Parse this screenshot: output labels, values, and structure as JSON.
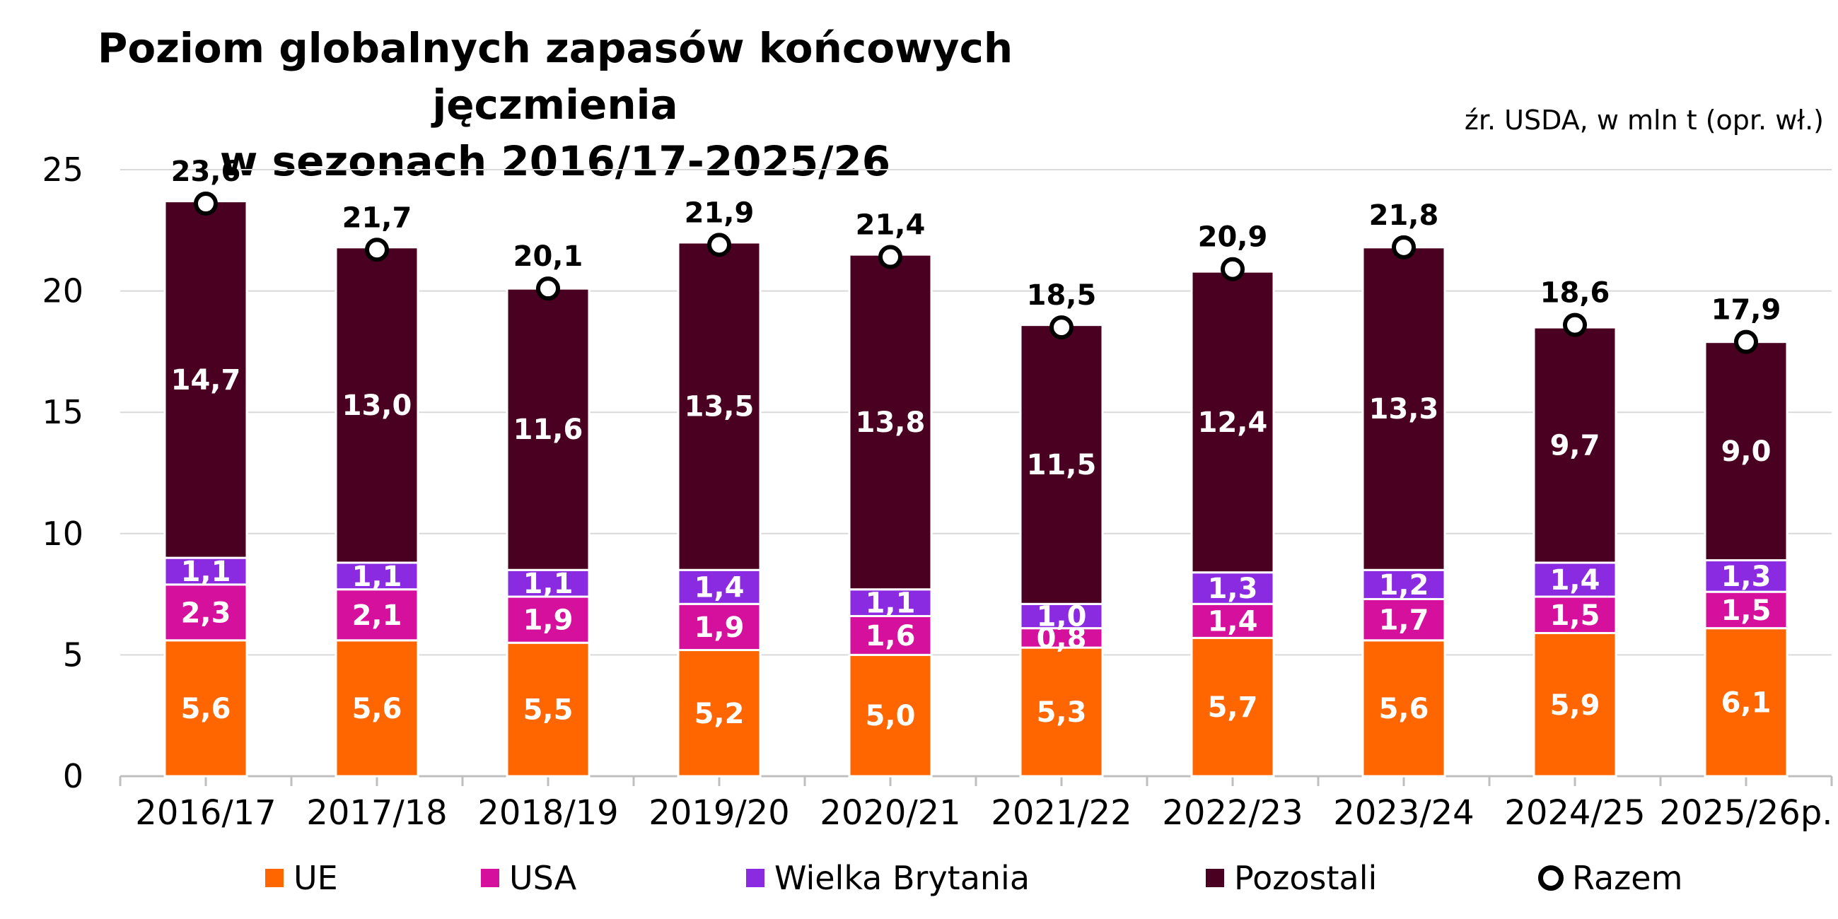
{
  "title_line1": "Poziom globalnych zapasów końcowych jęczmienia",
  "title_line2": "w sezonach 2016/17-2025/26",
  "source": "źr. USDA, w mln t (opr. wł.)",
  "colors": {
    "UE": "#FF6600",
    "USA": "#D4109C",
    "Wielka Brytania": "#8A2BE2",
    "Pozostali": "#4A0020",
    "Razem": "#000000"
  },
  "legend": [
    "UE",
    "USA",
    "Wielka Brytania",
    "Pozostali",
    "Razem"
  ],
  "chart_data": {
    "type": "bar",
    "stacked": true,
    "categories": [
      "2016/17",
      "2017/18",
      "2018/19",
      "2019/20",
      "2020/21",
      "2021/22",
      "2022/23",
      "2023/24",
      "2024/25",
      "2025/26p."
    ],
    "series": [
      {
        "name": "UE",
        "values": [
          5.6,
          5.6,
          5.5,
          5.2,
          5.0,
          5.3,
          5.7,
          5.6,
          5.9,
          6.1
        ],
        "labels": [
          "5,6",
          "5,6",
          "5,5",
          "5,2",
          "5,0",
          "5,3",
          "5,7",
          "5,6",
          "5,9",
          "6,1"
        ]
      },
      {
        "name": "USA",
        "values": [
          2.3,
          2.1,
          1.9,
          1.9,
          1.6,
          0.8,
          1.4,
          1.7,
          1.5,
          1.5
        ],
        "labels": [
          "2,3",
          "2,1",
          "1,9",
          "1,9",
          "1,6",
          "0,8",
          "1,4",
          "1,7",
          "1,5",
          "1,5"
        ]
      },
      {
        "name": "Wielka Brytania",
        "values": [
          1.1,
          1.1,
          1.1,
          1.4,
          1.1,
          1.0,
          1.3,
          1.2,
          1.4,
          1.3
        ],
        "labels": [
          "1,1",
          "1,1",
          "1,1",
          "1,4",
          "1,1",
          "1,0",
          "1,3",
          "1,2",
          "1,4",
          "1,3"
        ]
      },
      {
        "name": "Pozostali",
        "values": [
          14.7,
          13.0,
          11.6,
          13.5,
          13.8,
          11.5,
          12.4,
          13.3,
          9.7,
          9.0
        ],
        "labels": [
          "14,7",
          "13,0",
          "11,6",
          "13,5",
          "13,8",
          "11,5",
          "12,4",
          "13,3",
          "9,7",
          "9,0"
        ]
      }
    ],
    "totals": {
      "name": "Razem",
      "values": [
        23.6,
        21.7,
        20.1,
        21.9,
        21.4,
        18.5,
        20.9,
        21.8,
        18.6,
        17.9
      ],
      "labels": [
        "23,6",
        "21,7",
        "20,1",
        "21,9",
        "21,4",
        "18,5",
        "20,9",
        "21,8",
        "18,6",
        "17,9"
      ]
    },
    "yticks": [
      "0",
      "5",
      "10",
      "15",
      "20",
      "25"
    ],
    "ylim": [
      0,
      25
    ],
    "grid": true,
    "legend_position": "bottom"
  }
}
